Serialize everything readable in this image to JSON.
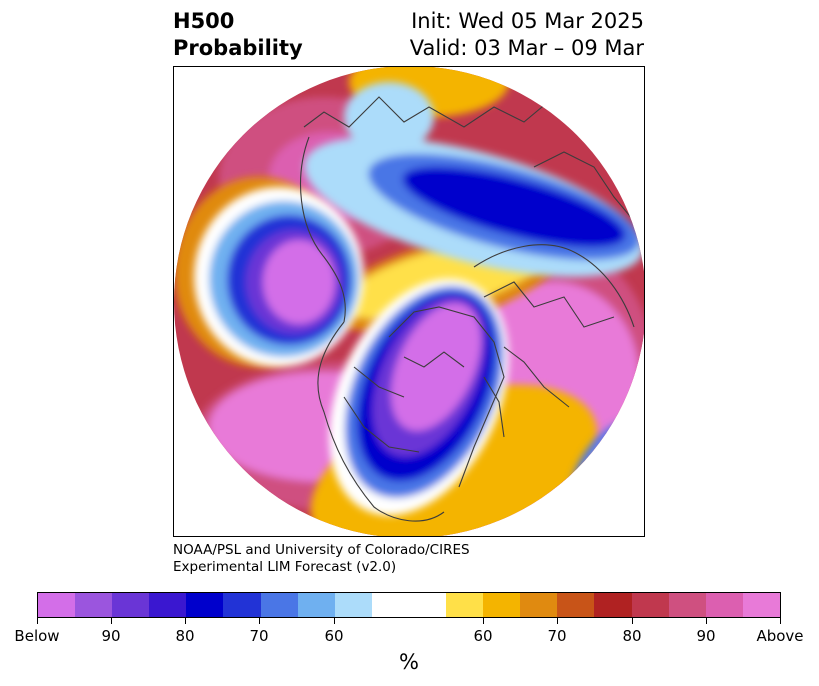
{
  "header": {
    "variable": "H500",
    "field": "Probability",
    "init": "Init: Wed 05 Mar 2025",
    "valid": "Valid: 03 Mar – 09 Mar"
  },
  "credit": {
    "line1": "NOAA/PSL and University of Colorado/CIRES",
    "line2": "Experimental LIM Forecast (v2.0)"
  },
  "colorbar": {
    "unit": "%",
    "colors": [
      "#d36ee8",
      "#9b55de",
      "#6a35d6",
      "#3a17d0",
      "#0000cc",
      "#2233d6",
      "#4a76e6",
      "#6fb0f0",
      "#acdcfa",
      "#ffffff",
      "#ffffff",
      "#ffe048",
      "#f4b400",
      "#e08a10",
      "#c85418",
      "#b02222",
      "#c0384e",
      "#cf5080",
      "#dc5fb0",
      "#e87ad8"
    ],
    "tick_labels": [
      "Below",
      "90",
      "80",
      "70",
      "60",
      "60",
      "70",
      "80",
      "90",
      "Above"
    ]
  },
  "map": {
    "colors": {
      "below_strong": "#d36ee8",
      "below_mid": "#3a17d0",
      "below_weak": "#6fb0f0",
      "neutral": "#ffffff",
      "above_weak": "#ffe048",
      "above_mid": "#b02222",
      "above_strong": "#e87ad8",
      "coast": "#3c3c3c"
    }
  }
}
